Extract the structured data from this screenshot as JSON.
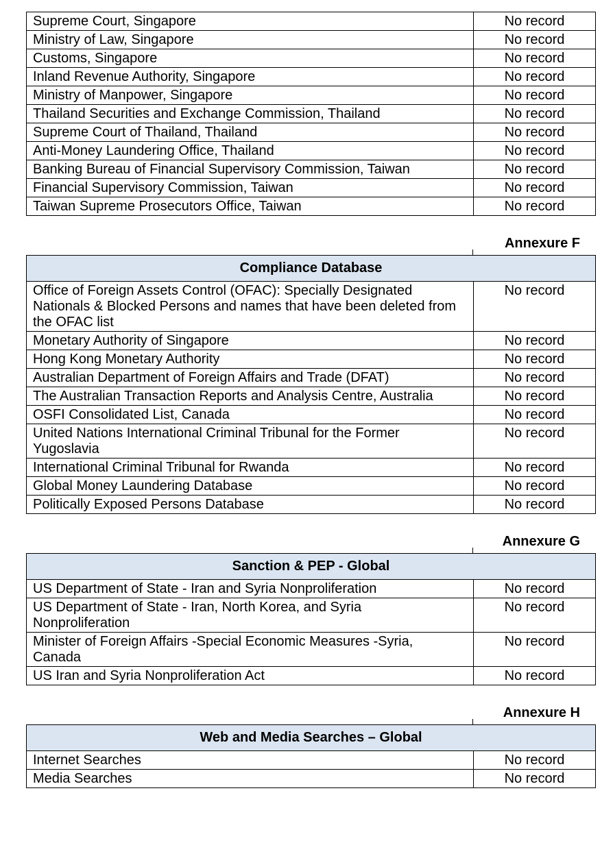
{
  "colors": {
    "page_background": "#ffffff",
    "table_header_bg": "#dbe5f1",
    "border": "#000000",
    "text": "#000000"
  },
  "tables": [
    {
      "id": "source-search-results-continued",
      "rows": [
        {
          "source": "Supreme Court, Singapore",
          "result": "No record"
        },
        {
          "source": "Ministry of Law, Singapore",
          "result": "No record"
        },
        {
          "source": "Customs, Singapore",
          "result": "No record"
        },
        {
          "source": "Inland Revenue Authority, Singapore",
          "result": "No record"
        },
        {
          "source": "Ministry of Manpower, Singapore",
          "result": "No record"
        },
        {
          "source": "Thailand Securities and Exchange Commission, Thailand",
          "result": "No record"
        },
        {
          "source": "Supreme Court of Thailand, Thailand",
          "result": "No record"
        },
        {
          "source": "Anti-Money Laundering Office, Thailand",
          "result": "No record"
        },
        {
          "source": "Banking Bureau of Financial Supervisory Commission, Taiwan",
          "result": "No record"
        },
        {
          "source": "Financial Supervisory Commission, Taiwan",
          "result": "No record"
        },
        {
          "source": "Taiwan Supreme Prosecutors Office, Taiwan",
          "result": "No record"
        }
      ]
    },
    {
      "id": "compliance-database",
      "annexure": "Annexure F",
      "title": "Compliance Database",
      "rows": [
        {
          "source": "Office of Foreign Assets Control (OFAC): Specially Designated Nationals & Blocked Persons and names that have been deleted from the OFAC list",
          "result": "No record"
        },
        {
          "source": "Monetary Authority of Singapore",
          "result": "No record"
        },
        {
          "source": "Hong Kong Monetary Authority",
          "result": "No record"
        },
        {
          "source": "Australian Department of Foreign Affairs and Trade (DFAT)",
          "result": "No record"
        },
        {
          "source": "The Australian Transaction Reports and Analysis Centre, Australia",
          "result": "No record"
        },
        {
          "source": "OSFI Consolidated List, Canada",
          "result": "No record"
        },
        {
          "source": "United Nations International Criminal Tribunal for the Former Yugoslavia",
          "result": "No record"
        },
        {
          "source": "International Criminal Tribunal for Rwanda",
          "result": "No record"
        },
        {
          "source": "Global Money Laundering Database",
          "result": "No record"
        },
        {
          "source": "Politically Exposed Persons Database",
          "result": "No record"
        }
      ]
    },
    {
      "id": "sanction-pep-global",
      "annexure": "Annexure G",
      "title": "Sanction & PEP - Global",
      "rows": [
        {
          "source": "US Department of State - Iran and Syria Nonproliferation",
          "result": "No record"
        },
        {
          "source": "US Department of State - Iran, North Korea, and Syria Nonproliferation",
          "result": "No record"
        },
        {
          "source": "Minister of Foreign Affairs -Special Economic Measures -Syria, Canada",
          "result": "No record"
        },
        {
          "source": "US Iran and Syria Nonproliferation Act",
          "result": "No record"
        }
      ]
    },
    {
      "id": "web-media-searches-global",
      "annexure": "Annexure H",
      "title": "Web and Media Searches – Global",
      "rows": [
        {
          "source": "Internet Searches",
          "result": "No record"
        },
        {
          "source": "Media Searches",
          "result": "No record"
        }
      ]
    }
  ]
}
